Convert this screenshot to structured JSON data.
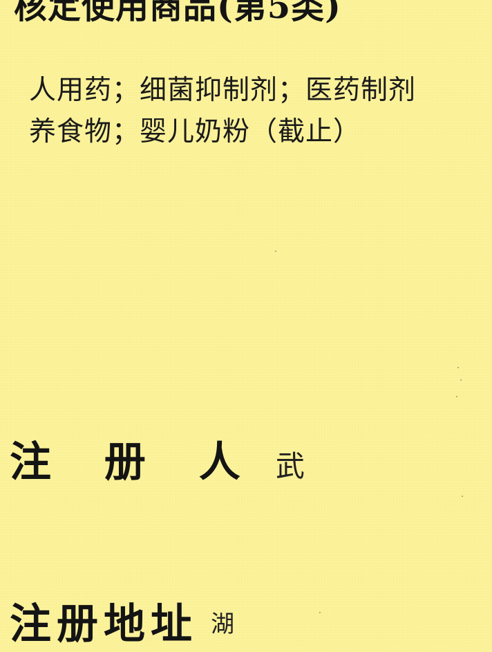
{
  "heading": "核定使用商品(第5类)",
  "goods_lines": [
    "人用药；细菌抑制剂；医药制剂",
    "养食物；婴儿奶粉（截止）"
  ],
  "registrant": {
    "label": "注 册 人",
    "value": "武"
  },
  "address": {
    "label": "注册地址",
    "value": "湖"
  }
}
